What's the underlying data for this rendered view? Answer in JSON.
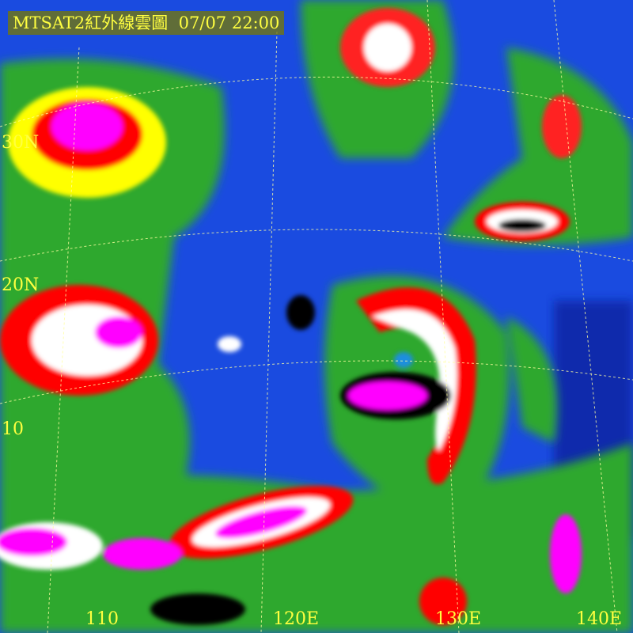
{
  "title": {
    "product": "MTSAT2紅外線雲圖",
    "datetime": "07/07 22:00"
  },
  "lat_labels": [
    "30N",
    "20N",
    "10"
  ],
  "lon_labels": [
    "110",
    "120E",
    "130E",
    "140E"
  ],
  "palette": {
    "clear_ocean": "#1a4be0",
    "low_cloud": "#2ea82e",
    "mid_cloud": "#ffff00",
    "high_cloud": "#ff0000",
    "very_high": "#ffffff",
    "top_black": "#000000",
    "cyan": "#20c0c0",
    "coldest": "#ff00ff"
  }
}
